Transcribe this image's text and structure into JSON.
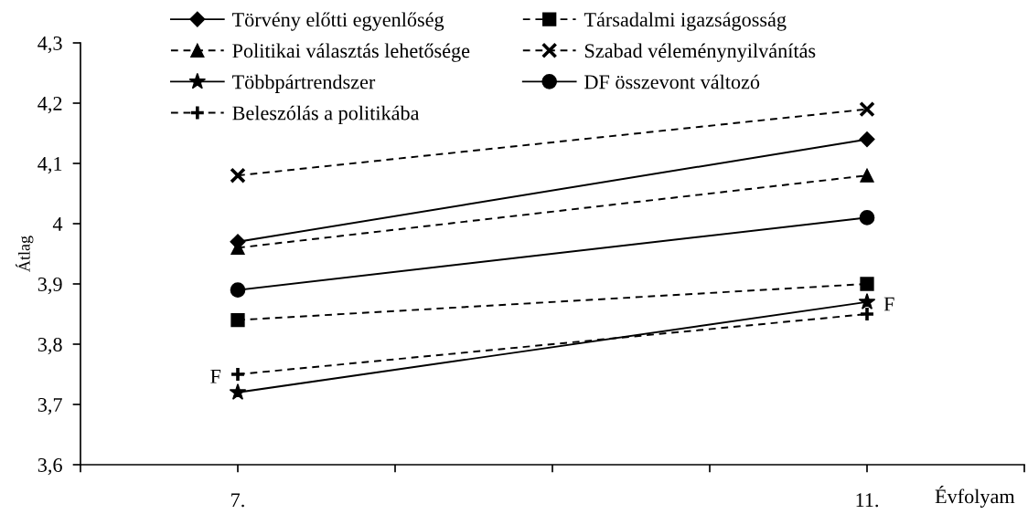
{
  "chart_data": {
    "type": "line",
    "xlabel": "Évfolyam",
    "ylabel": "Átlag",
    "x": [
      7,
      11
    ],
    "xlim": [
      6,
      12
    ],
    "xticks": [
      {
        "value": 6,
        "label": null
      },
      {
        "value": 7,
        "label": "7."
      },
      {
        "value": 8,
        "label": null
      },
      {
        "value": 9,
        "label": null
      },
      {
        "value": 10,
        "label": null
      },
      {
        "value": 11,
        "label": "11."
      },
      {
        "value": 12,
        "label": null
      }
    ],
    "ylim": [
      3.6,
      4.3
    ],
    "yticks": [
      {
        "value": 3.6,
        "label": "3,6"
      },
      {
        "value": 3.7,
        "label": "3,7"
      },
      {
        "value": 3.8,
        "label": "3,8"
      },
      {
        "value": 3.9,
        "label": "3,9"
      },
      4,
      {
        "value": 4.1,
        "label": "4,1"
      },
      {
        "value": 4.2,
        "label": "4,2"
      },
      {
        "value": 4.3,
        "label": "4,3"
      }
    ],
    "series": [
      {
        "name": "Törvény előtti egyenlőség",
        "color": "#000000",
        "values": [
          3.97,
          4.14
        ],
        "marker": "diamond",
        "line_style": "solid"
      },
      {
        "name": "Társadalmi igazságosság",
        "color": "#000000",
        "values": [
          3.84,
          3.9
        ],
        "marker": "square",
        "line_style": "dashed"
      },
      {
        "name": "Politikai választás lehetősége",
        "color": "#000000",
        "values": [
          3.96,
          4.08
        ],
        "marker": "triangle",
        "line_style": "dashed"
      },
      {
        "name": "Szabad véleménynyilvánítás",
        "color": "#000000",
        "values": [
          4.08,
          4.19
        ],
        "marker": "x",
        "line_style": "dashed"
      },
      {
        "name": "Többpártrendszer",
        "color": "#000000",
        "values": [
          3.72,
          3.87
        ],
        "marker": "star",
        "line_style": "solid"
      },
      {
        "name": "DF összevont változó",
        "color": "#000000",
        "values": [
          3.89,
          4.01
        ],
        "marker": "circle",
        "line_style": "solid"
      },
      {
        "name": "Beleszólás a politikába",
        "color": "#000000",
        "values": [
          3.75,
          3.85
        ],
        "marker": "cross",
        "line_style": "dashed"
      }
    ],
    "annotations": [
      {
        "text": "F",
        "x": 7,
        "y": 3.75
      },
      {
        "text": "F",
        "x": 11,
        "y": 3.87
      }
    ],
    "legend": "top",
    "grid": false
  }
}
